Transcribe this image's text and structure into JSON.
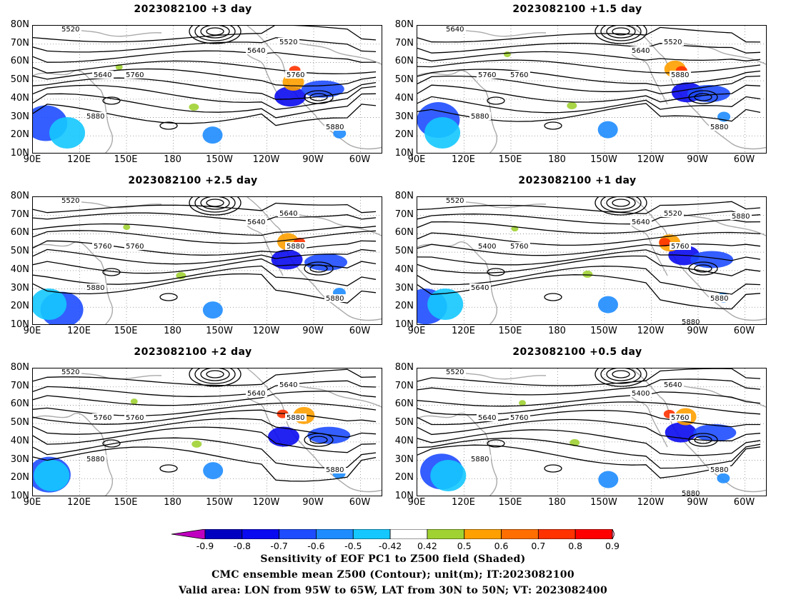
{
  "panels": [
    {
      "title": "2023082100  +3  day"
    },
    {
      "title": "2023082100  +1.5  day"
    },
    {
      "title": "2023082100  +2.5  day"
    },
    {
      "title": "2023082100  +1  day"
    },
    {
      "title": "2023082100  +2  day"
    },
    {
      "title": "2023082100  +0.5  day"
    }
  ],
  "axes": {
    "lat_labels": [
      "80N",
      "70N",
      "60N",
      "50N",
      "40N",
      "30N",
      "20N",
      "10N"
    ],
    "lon_labels": [
      "90E",
      "120E",
      "150E",
      "180",
      "150W",
      "120W",
      "90W",
      "60W"
    ]
  },
  "contour_levels": [
    5400,
    5520,
    5640,
    5760,
    5880
  ],
  "contour_labels": [
    [
      "5520",
      "5520",
      "5640",
      "5640",
      "5760",
      "5760",
      "5880",
      "5880"
    ],
    [
      "5640",
      "5520",
      "5640",
      "5760",
      "5760",
      "5880",
      "5880",
      "5880"
    ],
    [
      "5520",
      "5640",
      "5640",
      "5760",
      "5760",
      "5880",
      "5880",
      "5880"
    ],
    [
      "5520",
      "5520",
      "5640",
      "5400",
      "5760",
      "5760",
      "5640",
      "5880",
      "5880",
      "5880"
    ],
    [
      "5520",
      "5640",
      "5640",
      "5760",
      "5760",
      "5880",
      "5880",
      "5880"
    ],
    [
      "5520",
      "5640",
      "5400",
      "5640",
      "5760",
      "5760",
      "5880",
      "5880",
      "5880"
    ]
  ],
  "colorbar": {
    "ticks": [
      "-0.9",
      "-0.8",
      "-0.7",
      "-0.6",
      "-0.5",
      "-0.42",
      "0.42",
      "0.5",
      "0.6",
      "0.7",
      "0.8",
      "0.9"
    ],
    "colors": [
      "#c000c0",
      "#0000c0",
      "#0a0af0",
      "#1e4cff",
      "#1e8cff",
      "#14c8ff",
      "#ffffff",
      "#a0d232",
      "#ffa000",
      "#ff6e00",
      "#ff3200",
      "#ff0000",
      "#ffa0c8"
    ]
  },
  "captions": [
    "Sensitivity of EOF PC1 to Z500 field (Shaded)",
    "CMC ensemble mean Z500 (Contour); unit(m); IT:2023082100",
    "Valid area: LON from 95W to 65W, LAT from 30N to 50N; VT: 2023082400"
  ]
}
